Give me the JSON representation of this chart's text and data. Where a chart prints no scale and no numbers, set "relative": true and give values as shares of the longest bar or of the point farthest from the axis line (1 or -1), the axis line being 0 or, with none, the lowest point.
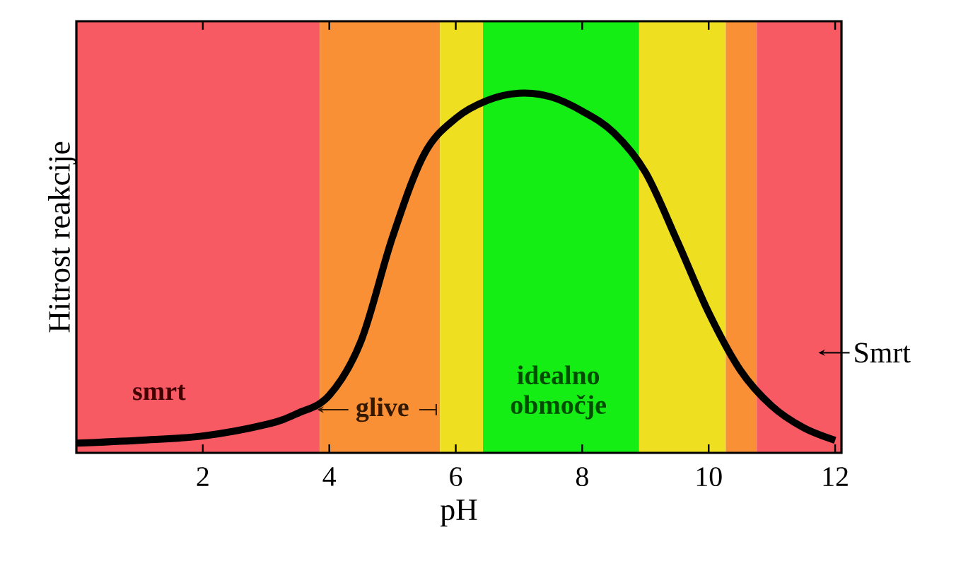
{
  "chart_data": {
    "type": "line",
    "relative": true,
    "xlabel": "pH",
    "ylabel": "Hitrost reakcije",
    "xlim": [
      0,
      12.1
    ],
    "xticks": [
      2,
      4,
      6,
      8,
      10,
      12
    ],
    "x": [
      0,
      1,
      2,
      3,
      3.5,
      4,
      4.5,
      5,
      5.5,
      6,
      6.5,
      7,
      7.5,
      8,
      8.5,
      9,
      9.5,
      10,
      10.5,
      11,
      11.5,
      12
    ],
    "series": [
      {
        "color": "#000000",
        "values": [
          0.027,
          0.035,
          0.047,
          0.079,
          0.11,
          0.16,
          0.31,
          0.6,
          0.83,
          0.93,
          0.98,
          1,
          0.99,
          0.95,
          0.89,
          0.78,
          0.59,
          0.39,
          0.23,
          0.13,
          0.07,
          0.035
        ]
      }
    ],
    "bands": [
      {
        "axis": "x",
        "from": 0,
        "to": 3.85,
        "color": "#f85a64"
      },
      {
        "axis": "x",
        "from": 3.85,
        "to": 5.75,
        "color": "#f99035"
      },
      {
        "axis": "x",
        "from": 5.75,
        "to": 6.43,
        "color": "#eee020"
      },
      {
        "axis": "x",
        "from": 6.43,
        "to": 8.9,
        "color": "#14ee14"
      },
      {
        "axis": "x",
        "from": 8.9,
        "to": 10.27,
        "color": "#eee020"
      },
      {
        "axis": "x",
        "from": 10.27,
        "to": 10.76,
        "color": "#f99035"
      },
      {
        "axis": "x",
        "from": 10.76,
        "to": 12.1,
        "color": "#f85a64"
      }
    ],
    "annotations": [
      "smrt",
      "glive",
      "idealno območje",
      "Smrt"
    ]
  }
}
